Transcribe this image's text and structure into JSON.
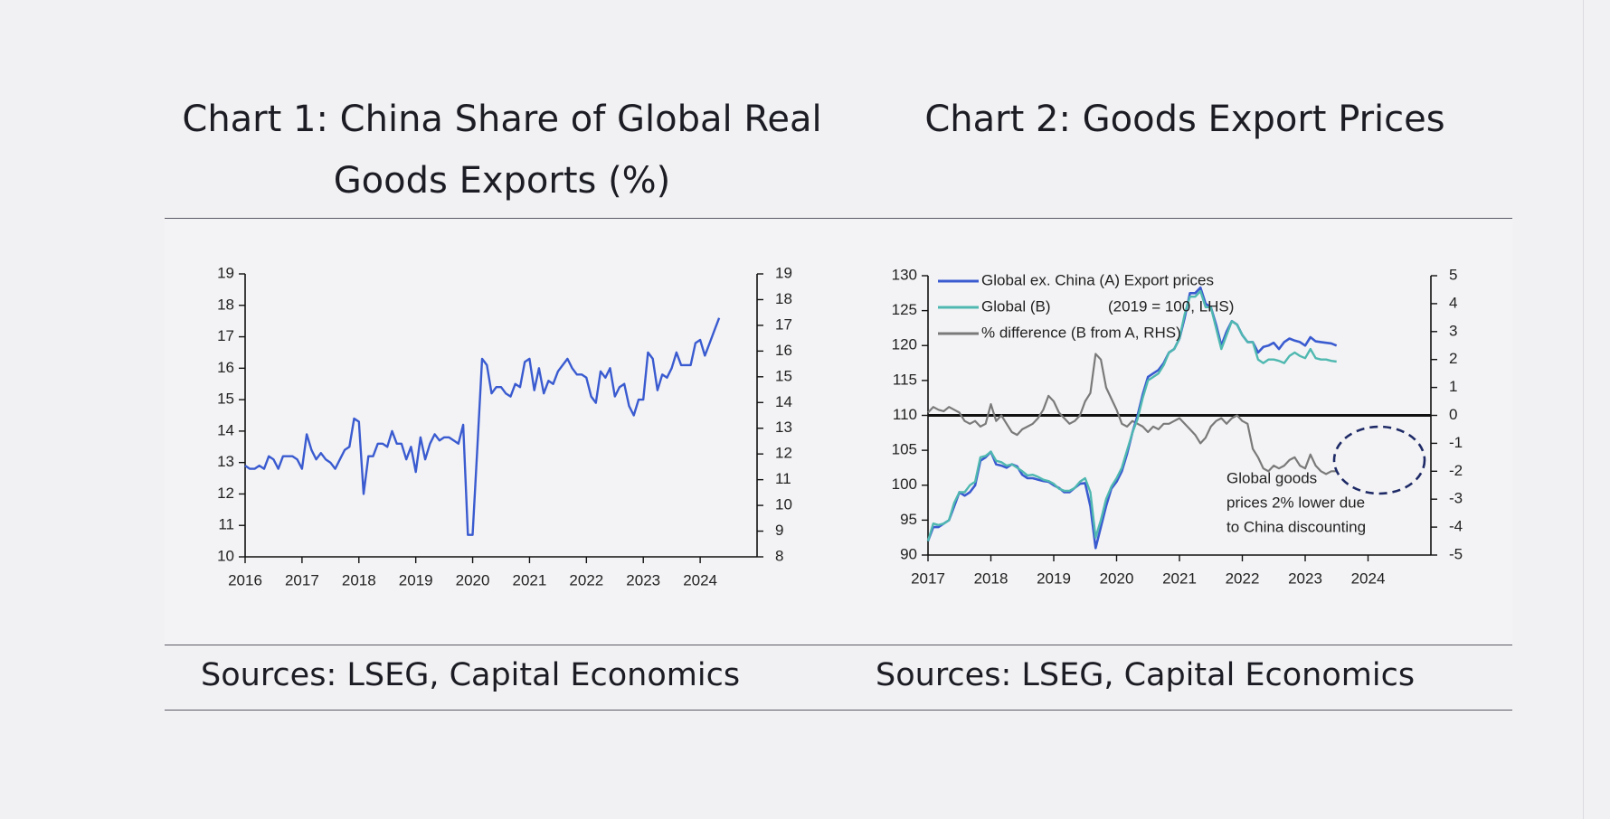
{
  "chart1": {
    "title_line1": "Chart 1: China Share of Global Real",
    "title_line2": "Goods Exports (%)",
    "source": "Sources: LSEG, Capital Economics"
  },
  "chart2": {
    "title": "Chart 2: Goods Export Prices",
    "source": "Sources: LSEG, Capital Economics",
    "annotation": [
      "Global goods",
      "prices 2% lower due",
      "to China discounting"
    ],
    "legend_note": "(2019 = 100, LHS)"
  },
  "colors": {
    "blue": "#3a5bd0",
    "teal": "#4fb8b0",
    "gray": "#7a7a7a",
    "dashed": "#1e2a66"
  },
  "chart_data": [
    {
      "type": "line",
      "title": "Chart 1: China Share of Global Real Goods Exports (%)",
      "x_start": 2016.0,
      "x_step": 0.08333,
      "xticks": [
        "2016",
        "2017",
        "2018",
        "2019",
        "2020",
        "2021",
        "2022",
        "2023",
        "2024"
      ],
      "ylim": [
        10,
        19
      ],
      "ylim_right": [
        8,
        19
      ],
      "yticks_left": [
        "10",
        "11",
        "12",
        "13",
        "14",
        "15",
        "16",
        "17",
        "18",
        "19"
      ],
      "yticks_right": [
        "8",
        "9",
        "10",
        "11",
        "12",
        "13",
        "14",
        "15",
        "16",
        "17",
        "18",
        "19"
      ],
      "series": [
        {
          "values": [
            12.9,
            12.8,
            12.8,
            12.9,
            12.8,
            13.2,
            13.1,
            12.8,
            13.2,
            13.2,
            13.2,
            13.1,
            12.8,
            13.9,
            13.4,
            13.1,
            13.3,
            13.1,
            13.0,
            12.8,
            13.1,
            13.4,
            13.5,
            14.4,
            14.3,
            12.0,
            13.2,
            13.2,
            13.6,
            13.6,
            13.5,
            14.0,
            13.6,
            13.6,
            13.1,
            13.5,
            12.7,
            13.8,
            13.1,
            13.6,
            13.9,
            13.7,
            13.8,
            13.8,
            13.7,
            13.6,
            14.2,
            10.7,
            10.7,
            13.5,
            16.3,
            16.1,
            15.2,
            15.4,
            15.4,
            15.2,
            15.1,
            15.5,
            15.4,
            16.2,
            16.3,
            15.3,
            16.0,
            15.2,
            15.6,
            15.5,
            15.9,
            16.1,
            16.3,
            16.0,
            15.8,
            15.8,
            15.7,
            15.1,
            14.9,
            15.9,
            15.7,
            16.0,
            15.1,
            15.4,
            15.5,
            14.8,
            14.5,
            15.0,
            15.0,
            16.5,
            16.3,
            15.3,
            15.8,
            15.7,
            16.0,
            16.5,
            16.1,
            16.1,
            16.1,
            16.8,
            16.9,
            16.4,
            16.8,
            17.2,
            17.6
          ]
        }
      ]
    },
    {
      "type": "line",
      "title": "Chart 2: Goods Export Prices",
      "x_start": 2017.0,
      "x_step": 0.08333,
      "xticks": [
        "2017",
        "2018",
        "2019",
        "2020",
        "2021",
        "2022",
        "2023",
        "2024"
      ],
      "ylim": [
        90,
        130
      ],
      "ylim_right": [
        -5,
        5
      ],
      "yticks_left": [
        "90",
        "95",
        "100",
        "105",
        "110",
        "115",
        "120",
        "125",
        "130"
      ],
      "yticks_right": [
        "-5",
        "-4",
        "-3",
        "-2",
        "-1",
        "0",
        "1",
        "2",
        "3",
        "4",
        "5"
      ],
      "series": [
        {
          "name": "Global ex. China (A) Export prices",
          "axis": "left",
          "color": "#3a5bd0",
          "values": [
            92,
            94,
            94,
            94.5,
            95,
            97,
            99,
            98.5,
            99,
            100,
            103.5,
            104,
            104.8,
            103,
            102.8,
            102.5,
            103,
            102.7,
            101.5,
            101,
            101,
            100.8,
            100.6,
            100.5,
            100,
            99.6,
            99,
            99,
            99.6,
            100.2,
            100.3,
            97,
            91,
            94,
            97,
            99.5,
            100.5,
            102,
            104.5,
            107.5,
            110,
            113,
            115.5,
            116,
            116.5,
            117.5,
            119,
            119.5,
            121,
            124,
            127.5,
            127.5,
            128.3,
            126,
            125.5,
            123,
            120,
            122,
            123.5,
            123,
            121.5,
            120.5,
            120.5,
            119,
            119.8,
            120,
            120.4,
            119.5,
            120.5,
            121,
            120.7,
            120.5,
            120,
            121.2,
            120.6,
            120.5,
            120.4,
            120.3,
            120
          ]
        },
        {
          "name": "Global (B)",
          "axis": "left",
          "color": "#4fb8b0",
          "values": [
            92,
            94.5,
            94.3,
            94.5,
            95,
            97.5,
            99,
            99,
            100,
            100.5,
            104,
            104.2,
            104.8,
            103.5,
            103.3,
            102.8,
            103,
            102.5,
            102,
            101.4,
            101.5,
            101.2,
            100.8,
            100.6,
            100.2,
            99.5,
            99.2,
            99.2,
            99.6,
            100.5,
            101,
            99,
            92.5,
            95,
            98,
            99.8,
            101,
            102.5,
            105,
            107.5,
            109.5,
            112.5,
            115,
            115.5,
            116,
            117.2,
            119,
            119.5,
            121,
            124.5,
            127,
            127,
            127.8,
            125.5,
            125.5,
            122.5,
            119.5,
            121.5,
            123.5,
            123,
            121.5,
            120.5,
            120.5,
            118,
            117.5,
            118,
            118,
            117.8,
            117.5,
            118.5,
            119,
            118.5,
            118.2,
            119.5,
            118.2,
            118,
            118,
            117.8,
            117.7
          ]
        },
        {
          "name": "% difference (B from A, RHS)",
          "axis": "right",
          "color": "#7a7a7a",
          "values": [
            0.1,
            0.3,
            0.2,
            0.15,
            0.3,
            0.2,
            0.1,
            -0.2,
            -0.3,
            -0.2,
            -0.4,
            -0.3,
            0.4,
            -0.2,
            0.0,
            -0.3,
            -0.6,
            -0.7,
            -0.5,
            -0.4,
            -0.3,
            -0.1,
            0.2,
            0.7,
            0.5,
            0.1,
            -0.1,
            -0.3,
            -0.2,
            0.0,
            0.5,
            0.8,
            2.2,
            2.0,
            1.0,
            0.6,
            0.2,
            -0.3,
            -0.4,
            -0.2,
            -0.3,
            -0.4,
            -0.6,
            -0.4,
            -0.5,
            -0.3,
            -0.3,
            -0.2,
            -0.1,
            -0.3,
            -0.5,
            -0.7,
            -1.0,
            -0.8,
            -0.4,
            -0.2,
            -0.1,
            -0.3,
            -0.1,
            0.0,
            -0.2,
            -0.3,
            -1.2,
            -1.5,
            -1.9,
            -2.0,
            -1.8,
            -1.9,
            -1.8,
            -1.6,
            -1.5,
            -1.8,
            -1.9,
            -1.4,
            -1.8,
            -2.0,
            -2.1,
            -2.0,
            -2.0
          ]
        }
      ]
    }
  ]
}
